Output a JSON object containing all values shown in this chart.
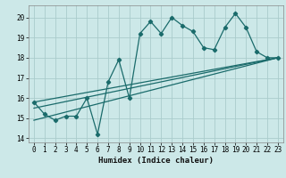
{
  "xlabel": "Humidex (Indice chaleur)",
  "bg_color": "#cce8e8",
  "grid_color": "#aacccc",
  "line_color": "#1a6b6b",
  "xlim": [
    -0.5,
    23.5
  ],
  "ylim": [
    13.8,
    20.6
  ],
  "yticks": [
    14,
    15,
    16,
    17,
    18,
    19,
    20
  ],
  "xticks": [
    0,
    1,
    2,
    3,
    4,
    5,
    6,
    7,
    8,
    9,
    10,
    11,
    12,
    13,
    14,
    15,
    16,
    17,
    18,
    19,
    20,
    21,
    22,
    23
  ],
  "zigzag_x": [
    0,
    1,
    2,
    3,
    4,
    5,
    6,
    7,
    8,
    9,
    10,
    11,
    12,
    13,
    14,
    15,
    16,
    17,
    18,
    19,
    20,
    21,
    22,
    23
  ],
  "zigzag_y": [
    15.8,
    15.2,
    14.9,
    15.1,
    15.1,
    16.0,
    14.2,
    16.8,
    17.9,
    16.0,
    19.2,
    19.8,
    19.2,
    20.0,
    19.6,
    19.3,
    18.5,
    18.4,
    19.5,
    20.2,
    19.5,
    18.3,
    18.0,
    18.0
  ],
  "line1_x": [
    0,
    23
  ],
  "line1_y": [
    15.8,
    18.0
  ],
  "line2_x": [
    0,
    23
  ],
  "line2_y": [
    15.5,
    18.0
  ],
  "line3_x": [
    0,
    23
  ],
  "line3_y": [
    14.9,
    18.0
  ]
}
